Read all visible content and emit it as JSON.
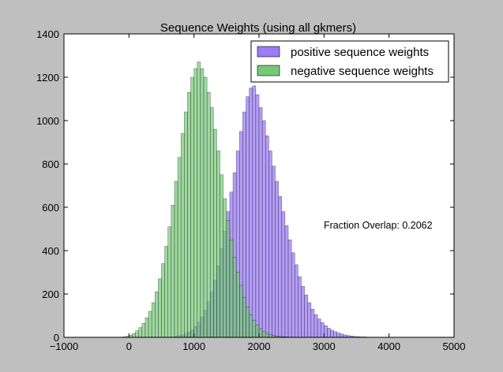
{
  "chart_data": {
    "type": "bar",
    "title": "Sequence Weights (using all gkmers)",
    "xlabel": "",
    "ylabel": "",
    "xlim": [
      -1000,
      5000
    ],
    "ylim": [
      0,
      1400
    ],
    "xticks": [
      "−1000",
      "0",
      "1000",
      "2000",
      "3000",
      "4000",
      "5000"
    ],
    "yticks": [
      "0",
      "200",
      "400",
      "600",
      "800",
      "1000",
      "1200",
      "1400"
    ],
    "grid": false,
    "legend_position": "top-right",
    "annotation": "Fraction Overlap: 0.2062",
    "series": [
      {
        "name": "positive sequence weights",
        "color": "#9b7cf5",
        "bin_width": 50,
        "bin_starts": [
          700,
          750,
          800,
          850,
          900,
          950,
          1000,
          1050,
          1100,
          1150,
          1200,
          1250,
          1300,
          1350,
          1400,
          1450,
          1500,
          1550,
          1600,
          1650,
          1700,
          1750,
          1800,
          1850,
          1900,
          1950,
          2000,
          2050,
          2100,
          2150,
          2200,
          2250,
          2300,
          2350,
          2400,
          2450,
          2500,
          2550,
          2600,
          2650,
          2700,
          2750,
          2800,
          2850,
          2900,
          2950,
          3000,
          3050,
          3100,
          3150,
          3200,
          3250,
          3300,
          3350,
          3400,
          3450,
          3500,
          3550,
          3600,
          3650,
          3700
        ],
        "values": [
          5,
          8,
          12,
          18,
          25,
          35,
          50,
          70,
          95,
          125,
          165,
          210,
          265,
          330,
          410,
          490,
          580,
          670,
          760,
          860,
          950,
          1040,
          1110,
          1150,
          1160,
          1120,
          1060,
          1000,
          930,
          860,
          790,
          720,
          650,
          580,
          515,
          450,
          390,
          335,
          280,
          235,
          195,
          160,
          130,
          105,
          85,
          68,
          54,
          42,
          33,
          26,
          20,
          15,
          11,
          8,
          6,
          4,
          3,
          2,
          2,
          1,
          1
        ]
      },
      {
        "name": "negative sequence weights",
        "color": "#75c977",
        "bin_width": 50,
        "bin_starts": [
          -100,
          -50,
          0,
          50,
          100,
          150,
          200,
          250,
          300,
          350,
          400,
          450,
          500,
          550,
          600,
          650,
          700,
          750,
          800,
          850,
          900,
          950,
          1000,
          1050,
          1100,
          1150,
          1200,
          1250,
          1300,
          1350,
          1400,
          1450,
          1500,
          1550,
          1600,
          1650,
          1700,
          1750,
          1800,
          1850,
          1900,
          1950,
          2000,
          2050,
          2100,
          2150,
          2200,
          2250,
          2300,
          2350,
          2400,
          2450,
          2500
        ],
        "values": [
          2,
          5,
          10,
          18,
          30,
          45,
          65,
          90,
          120,
          160,
          210,
          270,
          340,
          420,
          510,
          610,
          720,
          830,
          940,
          1040,
          1130,
          1200,
          1240,
          1270,
          1240,
          1200,
          1130,
          1060,
          960,
          860,
          750,
          640,
          540,
          450,
          370,
          300,
          240,
          185,
          140,
          105,
          78,
          56,
          40,
          28,
          19,
          13,
          9,
          6,
          4,
          3,
          2,
          1,
          1
        ]
      }
    ]
  }
}
